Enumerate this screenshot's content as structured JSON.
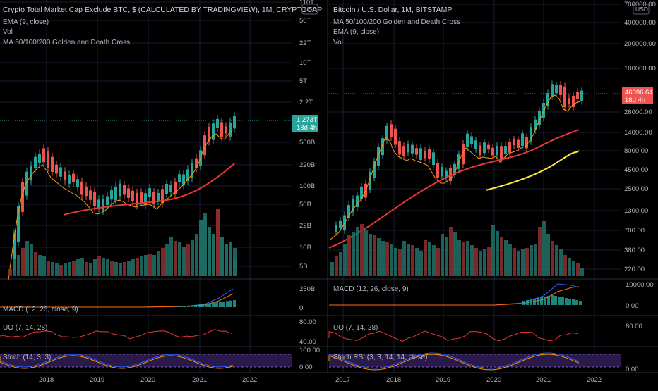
{
  "left_panel": {
    "title": "Crypto Total Market Cap Exclude BTC, $ (CALCULATED BY TRADINGVIEW), 1M, CRYPTOCAP",
    "indicators": [
      "EMA (9, close)",
      "Vol",
      "MA 50/100/200 Golden and Death Cross"
    ],
    "price_ticks": [
      "110T",
      "50T",
      "22T",
      "10T",
      "5T",
      "2.2T",
      "500B",
      "220B",
      "100B",
      "50B",
      "22B",
      "10B",
      "5B"
    ],
    "price_label": "1.273T",
    "price_label_sub": "18d 4h",
    "macd_title": "MACD (12, 26, close, 9)",
    "macd_ticks": [
      "250B",
      "0"
    ],
    "uo_title": "UO (7, 14, 28)",
    "uo_ticks": [
      "80.00",
      "40.00"
    ],
    "stoch_title": "Stoch (14, 3, 3)",
    "stoch_ticks": [
      "100.00",
      "0.00"
    ],
    "time_ticks": [
      "2018",
      "2019",
      "2020",
      "2021",
      "2022"
    ],
    "colors": {
      "price_label_bg": "#26a69a"
    }
  },
  "right_panel": {
    "title": "Bitcoin / U.S. Dollar, 1M, BITSTAMP",
    "indicators": [
      "MA 50/100/200 Golden and Death Cross",
      "EMA (9, close)",
      "Vol"
    ],
    "price_ticks": [
      "700000.00",
      "400000.00",
      "200000.00",
      "100000.00",
      "26000.00",
      "14000.00",
      "8000.00",
      "4500.00",
      "2500.00",
      "1300.00",
      "700.00",
      "380.00",
      "220.00"
    ],
    "price_label": "46096.64",
    "price_label_sub": "18d 4h",
    "macd_title": "MACD (12, 26, close, 9)",
    "macd_ticks": [
      "10000.00",
      "0.00"
    ],
    "uo_title": "UO (7, 14, 28)",
    "uo_ticks": [
      "80.00"
    ],
    "stoch_title": "Stoch RSI (3, 3, 14, 14, close)",
    "stoch_ticks": [
      "0.00"
    ],
    "time_ticks": [
      "2017",
      "2018",
      "2019",
      "2020",
      "2021",
      "2022"
    ],
    "colors": {
      "price_label_bg": "#ef5350"
    }
  },
  "currency_badge": "USD",
  "colors": {
    "up": "#26a69a",
    "down": "#ef5350",
    "ema": "#ff9800",
    "ma_red": "#e53935",
    "ma_yellow": "#ffeb3b",
    "macd_line": "#2962ff",
    "signal_line": "#ff6d00",
    "uo_line": "#e53935",
    "stoch_bg": "#2a1a4a"
  }
}
